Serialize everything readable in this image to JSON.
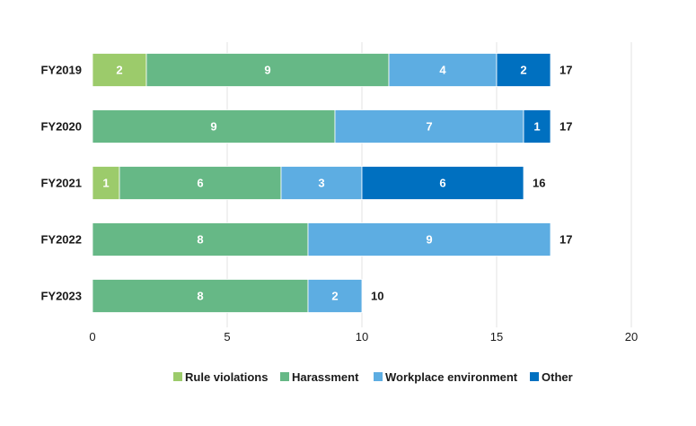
{
  "chart_data": {
    "type": "bar",
    "orientation": "horizontal",
    "stacked": true,
    "categories": [
      "FY2019",
      "FY2020",
      "FY2021",
      "FY2022",
      "FY2023"
    ],
    "series": [
      {
        "name": "Rule violations",
        "color": "#9ccb6b",
        "values": [
          2,
          0,
          1,
          0,
          0
        ]
      },
      {
        "name": "Harassment",
        "color": "#66b886",
        "values": [
          9,
          9,
          6,
          8,
          8
        ]
      },
      {
        "name": "Workplace environment",
        "color": "#5dade2",
        "values": [
          4,
          7,
          3,
          9,
          2
        ]
      },
      {
        "name": "Other",
        "color": "#0070c0",
        "values": [
          2,
          1,
          6,
          0,
          0
        ]
      }
    ],
    "totals": [
      17,
      17,
      16,
      17,
      10
    ],
    "xticks": [
      0,
      5,
      10,
      15,
      20
    ],
    "xlim": [
      0,
      20
    ],
    "grid": true,
    "legend_position": "bottom"
  }
}
